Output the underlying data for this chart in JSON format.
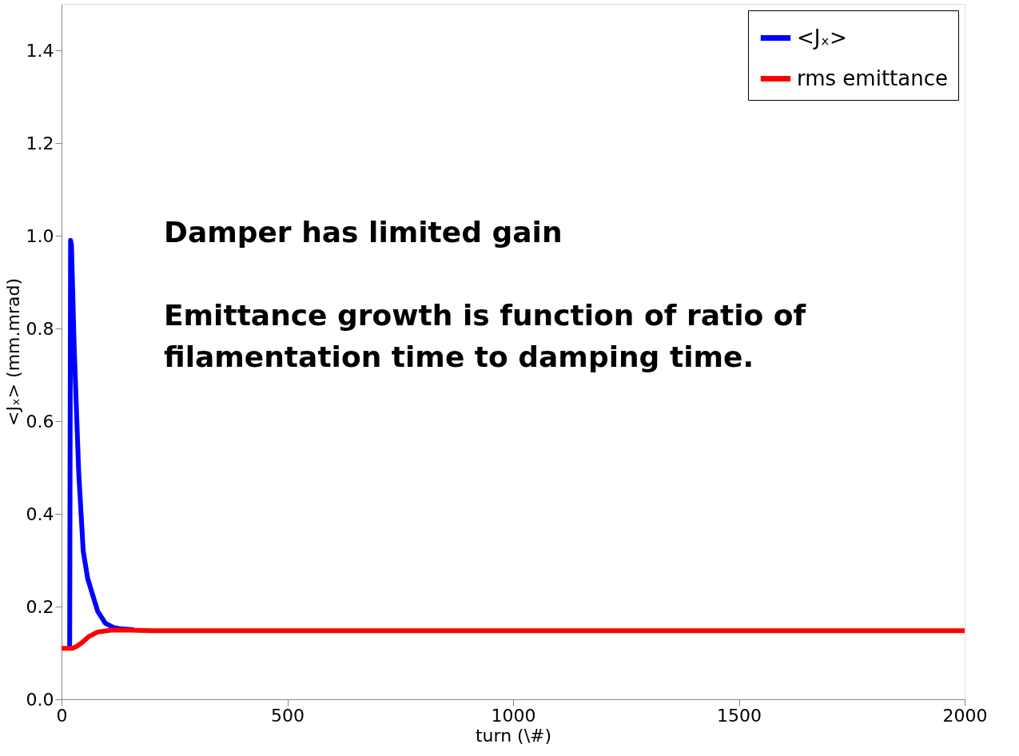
{
  "chart_data": {
    "type": "line",
    "xlabel": "turn (\\#)",
    "ylabel": "<Jₓ> (mm.mrad)",
    "xlim": [
      0,
      2000
    ],
    "xticks": [
      0,
      500,
      1000,
      1500,
      2000
    ],
    "ylim": [
      0,
      1.5
    ],
    "yticks": [
      {
        "value": 0,
        "label": "0.0"
      },
      0.2,
      0.4,
      0.6,
      0.8,
      {
        "value": 1,
        "label": "1.0"
      },
      1.2,
      1.4
    ],
    "grid": false,
    "legend": "top right",
    "marker": "none",
    "line_style": "solid",
    "annotations": [
      "Damper has limited gain",
      "Emittance growth is function of ratio of filamentation time to damping time."
    ],
    "series": [
      {
        "name": "<Jₓ>",
        "color": "#0000ff",
        "x": [
          18,
          20,
          22,
          28,
          38,
          48,
          58,
          69,
          80,
          97,
          115,
          130,
          160
        ],
        "values": [
          0.11,
          0.99,
          0.98,
          0.76,
          0.49,
          0.32,
          0.26,
          0.225,
          0.19,
          0.164,
          0.155,
          0.152,
          0.15
        ]
      },
      {
        "name": "rms emittance",
        "color": "#ff0000",
        "x": [
          0,
          25,
          35,
          45,
          60,
          80,
          110,
          150,
          200,
          500,
          1000,
          1500,
          2000
        ],
        "values": [
          0.11,
          0.11,
          0.115,
          0.122,
          0.135,
          0.145,
          0.149,
          0.149,
          0.148,
          0.148,
          0.148,
          0.148,
          0.148
        ]
      }
    ]
  }
}
